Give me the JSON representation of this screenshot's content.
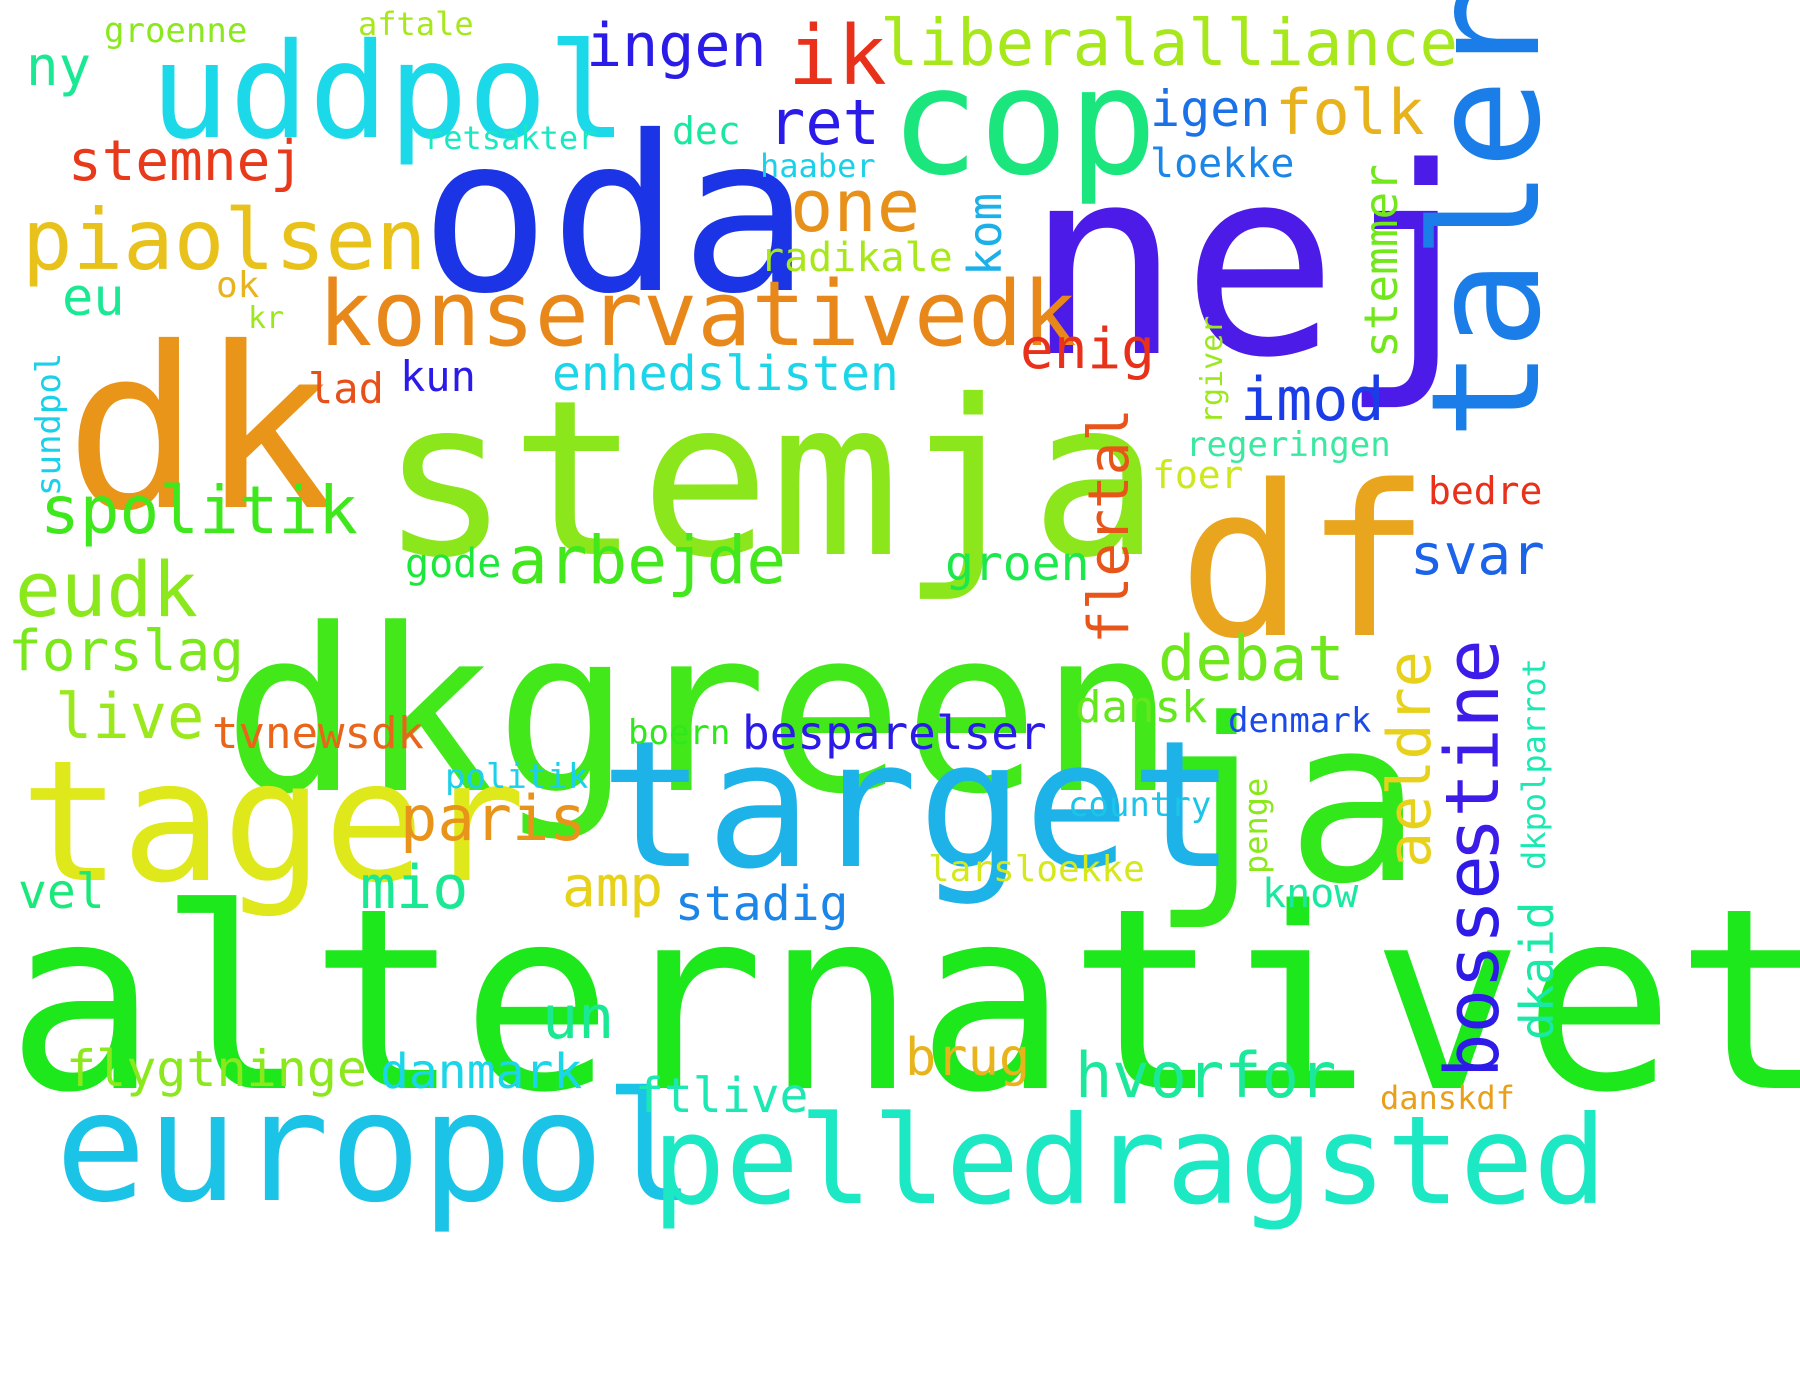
{
  "words": [
    {
      "text": "alternativet",
      "color": "#1ce81c"
    },
    {
      "text": "dkgreen",
      "color": "#43e81a"
    },
    {
      "text": "stemja",
      "color": "#8ce61c"
    },
    {
      "text": "oda",
      "color": "#1b35e6"
    },
    {
      "text": "nej",
      "color": "#4c1be8"
    },
    {
      "text": "dk",
      "color": "#e8951a"
    },
    {
      "text": "df",
      "color": "#e8a51d"
    },
    {
      "text": "ja",
      "color": "#33e81a"
    },
    {
      "text": "target",
      "color": "#1db3e8"
    },
    {
      "text": "tager",
      "color": "#dfe81b"
    },
    {
      "text": "europol",
      "color": "#1bc4e6"
    },
    {
      "text": "pelledragsted",
      "color": "#1ce8c3"
    },
    {
      "text": "cop",
      "color": "#1be67e"
    },
    {
      "text": "uddpol",
      "color": "#1bd9e8"
    },
    {
      "text": "taler",
      "color": "#1b7ee8"
    },
    {
      "text": "konservativedk",
      "color": "#e8881a"
    },
    {
      "text": "piaolsen",
      "color": "#e8c11b"
    },
    {
      "text": "liberalalliance",
      "color": "#a6e81b"
    },
    {
      "text": "ingen",
      "color": "#2a1be6"
    },
    {
      "text": "ik",
      "color": "#e8301a"
    },
    {
      "text": "stemnej",
      "color": "#e8391a"
    },
    {
      "text": "bosse",
      "color": "#2e1be8"
    },
    {
      "text": "stine",
      "color": "#3d1be8"
    },
    {
      "text": "eudk",
      "color": "#8be81c"
    },
    {
      "text": "spolitik",
      "color": "#3ee81c"
    },
    {
      "text": "arbejde",
      "color": "#42e81c"
    },
    {
      "text": "paris",
      "color": "#e8941a"
    },
    {
      "text": "one",
      "color": "#e8911a"
    },
    {
      "text": "ret",
      "color": "#2a1be8"
    },
    {
      "text": "folk",
      "color": "#e8b21c"
    },
    {
      "text": "igen",
      "color": "#1b72e8"
    },
    {
      "text": "loekke",
      "color": "#1b86e8"
    },
    {
      "text": "enig",
      "color": "#e8301a"
    },
    {
      "text": "imod",
      "color": "#1b3de8"
    },
    {
      "text": "svar",
      "color": "#1b63e8"
    },
    {
      "text": "debat",
      "color": "#6ee81c"
    },
    {
      "text": "aeldre",
      "color": "#e8d11b"
    },
    {
      "text": "flertal",
      "color": "#e8551a"
    },
    {
      "text": "kom",
      "color": "#1bb0e8"
    },
    {
      "text": "stemmer",
      "color": "#72e81c"
    },
    {
      "text": "enhedslisten",
      "color": "#1bd5e8"
    },
    {
      "text": "radikale",
      "color": "#a8e81b"
    },
    {
      "text": "hvorfor",
      "color": "#1be89a"
    },
    {
      "text": "ftlive",
      "color": "#1be8b3"
    },
    {
      "text": "brug",
      "color": "#e8b41c"
    },
    {
      "text": "besparelser",
      "color": "#2b1be8"
    },
    {
      "text": "forslag",
      "color": "#7ae81c"
    },
    {
      "text": "live",
      "color": "#9be81c"
    },
    {
      "text": "eu",
      "color": "#1be893"
    },
    {
      "text": "ny",
      "color": "#1be893"
    },
    {
      "text": "mio",
      "color": "#1be893"
    },
    {
      "text": "amp",
      "color": "#e8d11b"
    },
    {
      "text": "un",
      "color": "#1be893"
    },
    {
      "text": "vel",
      "color": "#1be87a"
    },
    {
      "text": "stadig",
      "color": "#1b86e8"
    },
    {
      "text": "flygtninge",
      "color": "#8be81c"
    },
    {
      "text": "danmark",
      "color": "#1bd5e8"
    },
    {
      "text": "groen",
      "color": "#1be84a"
    },
    {
      "text": "gode",
      "color": "#1be83a"
    },
    {
      "text": "tvnewsdk",
      "color": "#e8651a"
    },
    {
      "text": "lad",
      "color": "#e8501a"
    },
    {
      "text": "kun",
      "color": "#2b1be8"
    },
    {
      "text": "dansk",
      "color": "#63e81c"
    },
    {
      "text": "denmark",
      "color": "#1b4ae8"
    },
    {
      "text": "dkaid",
      "color": "#1be8a6"
    },
    {
      "text": "dkpolparrot",
      "color": "#1be8b3"
    },
    {
      "text": "know",
      "color": "#1be8a0"
    },
    {
      "text": "country",
      "color": "#1bc4e8"
    },
    {
      "text": "larsloekke",
      "color": "#d5e81c"
    },
    {
      "text": "penge",
      "color": "#8be81c"
    },
    {
      "text": "politik",
      "color": "#1bd0e8"
    },
    {
      "text": "boern",
      "color": "#2ee81c"
    },
    {
      "text": "foer",
      "color": "#cde81b"
    },
    {
      "text": "regeringen",
      "color": "#3be8a0"
    },
    {
      "text": "rgiver",
      "color": "#9be81c"
    },
    {
      "text": "bedre",
      "color": "#e8301a"
    },
    {
      "text": "danskdf",
      "color": "#e8a01c"
    },
    {
      "text": "sundpol",
      "color": "#1bd0e8"
    },
    {
      "text": "ok",
      "color": "#e8b41c"
    },
    {
      "text": "kr",
      "color": "#9be81c"
    },
    {
      "text": "groenne",
      "color": "#8be81c"
    },
    {
      "text": "aftale",
      "color": "#a6e81b"
    },
    {
      "text": "retsakter",
      "color": "#1be8c3"
    },
    {
      "text": "dec",
      "color": "#1be8a0"
    },
    {
      "text": "haaber",
      "color": "#1bd0e8"
    }
  ]
}
